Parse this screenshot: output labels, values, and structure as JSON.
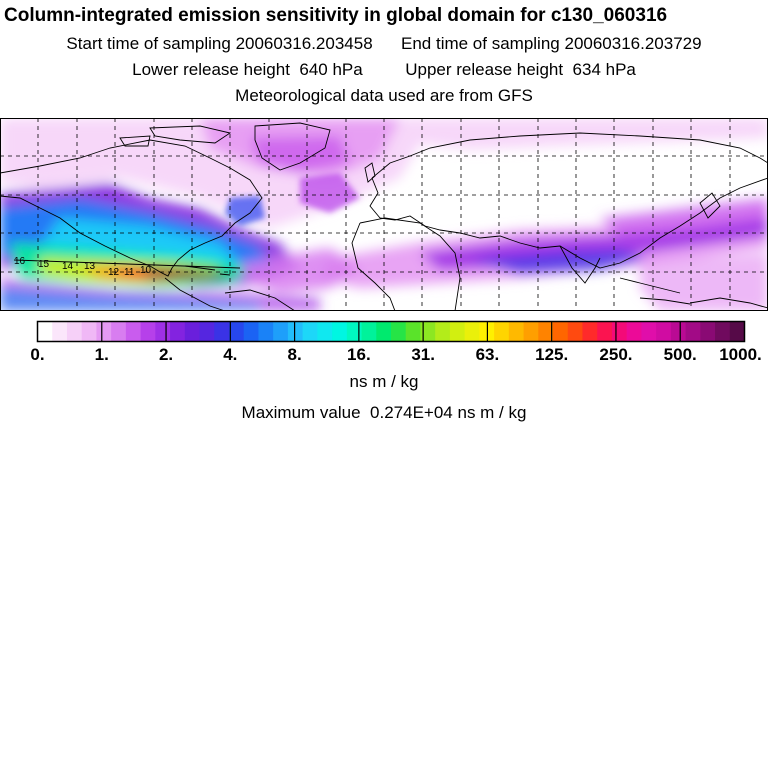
{
  "header": {
    "title": "Column-integrated emission sensitivity in global domain for c130_060316",
    "start_label": "Start time of sampling",
    "start_value": "20060316.203458",
    "end_label": "End time of sampling",
    "end_value": "20060316.203729",
    "lower_label": "Lower release height",
    "lower_value": "640 hPa",
    "upper_label": "Upper release height",
    "upper_value": "634 hPa",
    "met_line": "Meteorological data used are from GFS"
  },
  "map": {
    "flight_track_labels": [
      "16",
      "15",
      "14",
      "13",
      "12",
      "11",
      "10"
    ],
    "colors": {
      "ocean_background": "#ffffff",
      "coastline": "#000000",
      "grid": "#000000"
    }
  },
  "colorbar": {
    "tick_labels": [
      "0.",
      "1.",
      "2.",
      "4.",
      "8.",
      "16.",
      "31.",
      "63.",
      "125.",
      "250.",
      "500.",
      "1000."
    ],
    "colors": [
      "#ffffff",
      "#fbe6fb",
      "#f6d0f8",
      "#f0b8f6",
      "#e59af3",
      "#d87df0",
      "#c95cee",
      "#b640ea",
      "#9f30e6",
      "#8323e0",
      "#6a1fdc",
      "#5526e0",
      "#3a33e6",
      "#2747ee",
      "#1b63f4",
      "#1a82f7",
      "#1e9ffa",
      "#22bdfb",
      "#1dd7f8",
      "#10e8f0",
      "#00f6e2",
      "#00f8c0",
      "#00f29a",
      "#00ea6e",
      "#26e446",
      "#5ae32a",
      "#8ce722",
      "#b3ec1a",
      "#d2ef10",
      "#eaf00a",
      "#fff000",
      "#ffd500",
      "#ffb900",
      "#ff9f00",
      "#ff8300",
      "#ff6600",
      "#ff4a10",
      "#ff2a2a",
      "#fb1450",
      "#f40a78",
      "#ec0a98",
      "#e00eaa",
      "#d00ca2",
      "#ba0a94",
      "#a20a86",
      "#8a0a74",
      "#700a5e",
      "#560a48"
    ],
    "units": "ns m / kg"
  },
  "footer": {
    "max_label": "Maximum value",
    "max_value": "0.274E+04",
    "max_units": "ns m / kg"
  }
}
